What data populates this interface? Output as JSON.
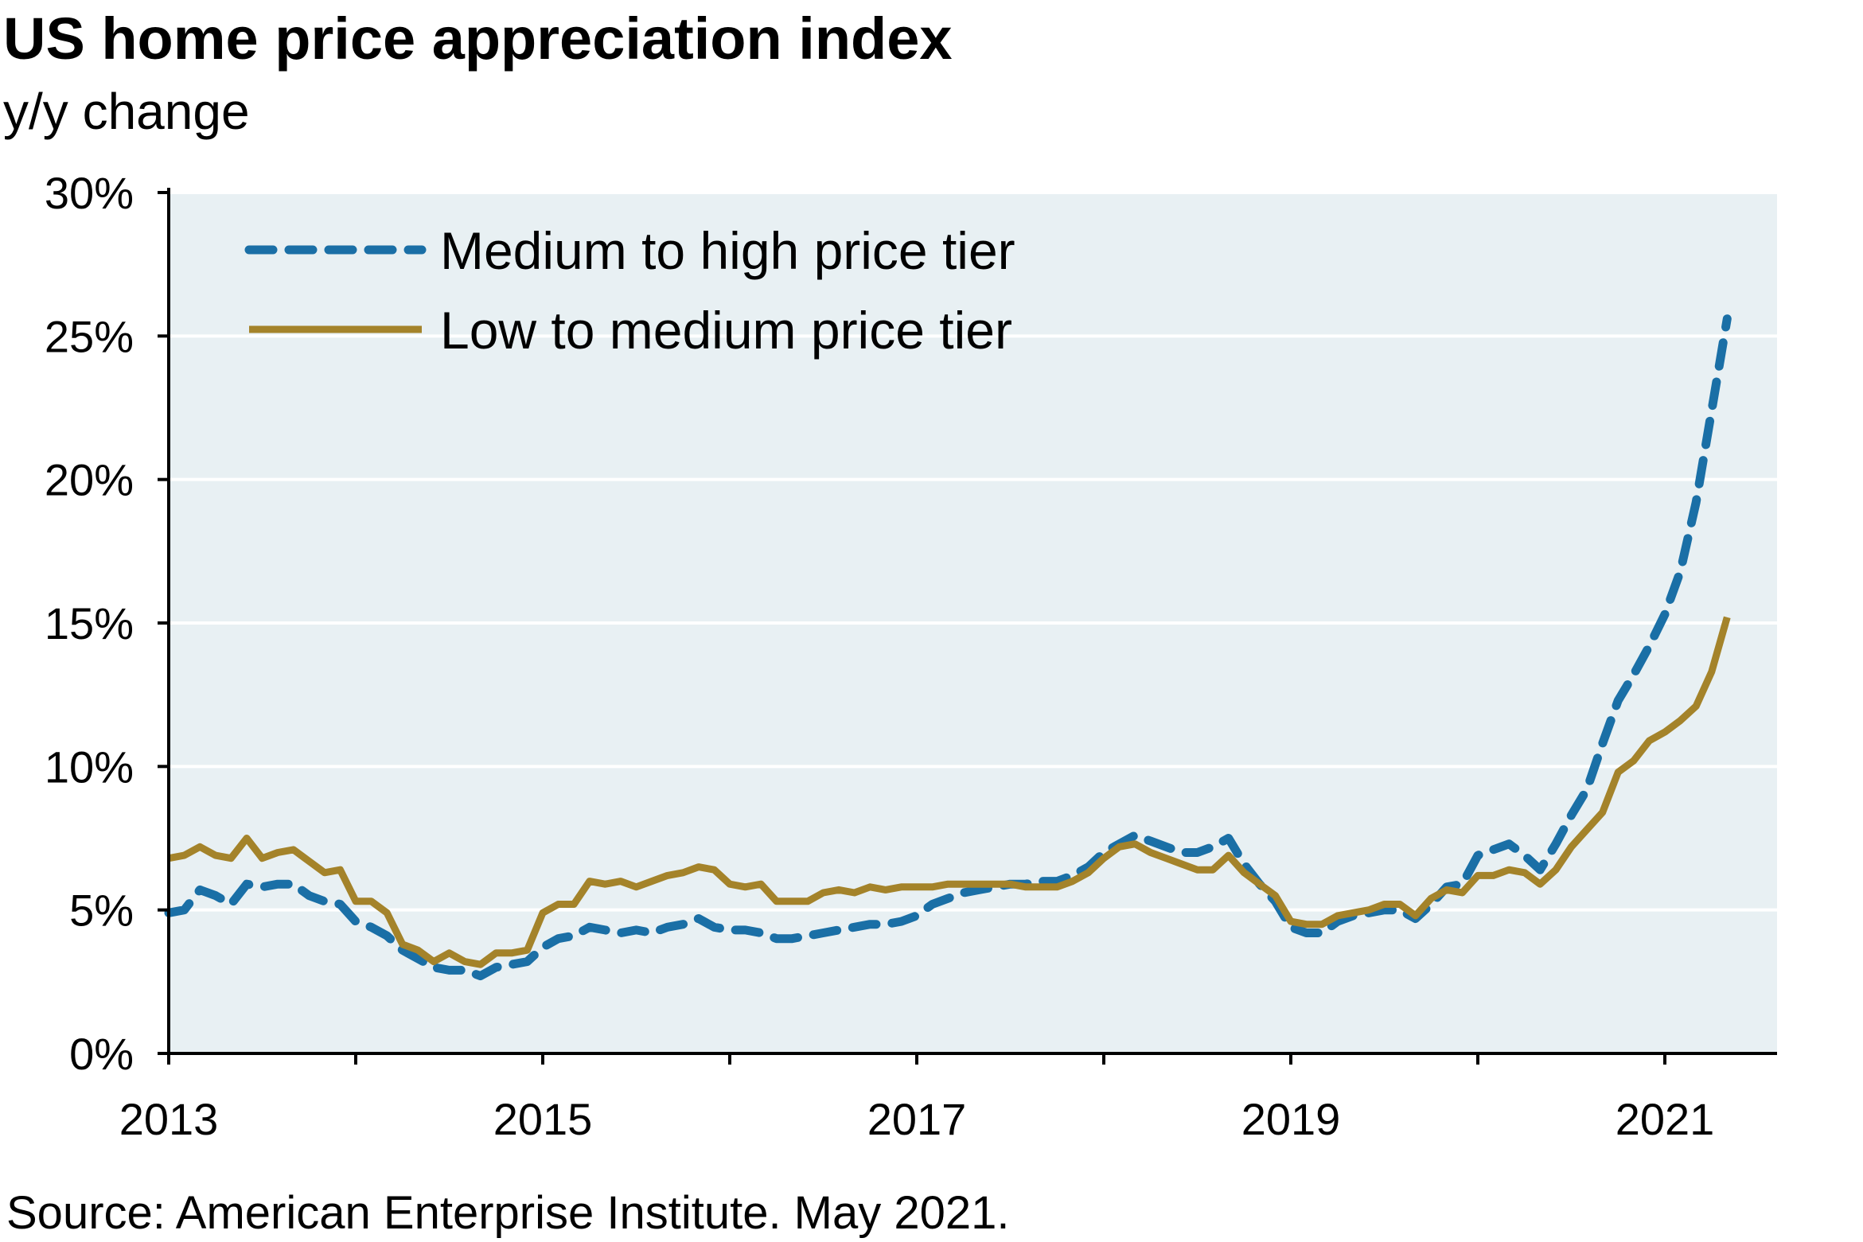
{
  "title": "US home price appreciation index",
  "subtitle": "y/y change",
  "source": "Source: American Enterprise Institute. May 2021.",
  "chart_data": {
    "type": "line",
    "xlim": [
      2013,
      2021.6
    ],
    "ylim": [
      0,
      30
    ],
    "x_ticks": [
      {
        "value": 2013,
        "label": "2013"
      },
      {
        "value": 2015,
        "label": "2015"
      },
      {
        "value": 2017,
        "label": "2017"
      },
      {
        "value": 2019,
        "label": "2019"
      },
      {
        "value": 2021,
        "label": "2021"
      }
    ],
    "y_ticks": [
      {
        "value": 0,
        "label": "0%"
      },
      {
        "value": 5,
        "label": "5%"
      },
      {
        "value": 10,
        "label": "10%"
      },
      {
        "value": 15,
        "label": "15%"
      },
      {
        "value": 20,
        "label": "20%"
      },
      {
        "value": 25,
        "label": "25%"
      },
      {
        "value": 30,
        "label": "30%"
      }
    ],
    "grid": "horizontal",
    "background_color": "#e8f0f3",
    "legend_position": "top-left",
    "series": [
      {
        "name": "Medium to high price tier",
        "style": "dashed",
        "color": "#1a6fa6",
        "points": [
          [
            2013.0,
            4.9
          ],
          [
            2013.083,
            5.0
          ],
          [
            2013.167,
            5.7
          ],
          [
            2013.25,
            5.5
          ],
          [
            2013.333,
            5.2
          ],
          [
            2013.417,
            5.9
          ],
          [
            2013.5,
            5.8
          ],
          [
            2013.583,
            5.9
          ],
          [
            2013.667,
            5.9
          ],
          [
            2013.75,
            5.5
          ],
          [
            2013.833,
            5.3
          ],
          [
            2013.917,
            5.2
          ],
          [
            2014.0,
            4.6
          ],
          [
            2014.083,
            4.4
          ],
          [
            2014.167,
            4.1
          ],
          [
            2014.25,
            3.6
          ],
          [
            2014.333,
            3.3
          ],
          [
            2014.417,
            3.0
          ],
          [
            2014.5,
            2.9
          ],
          [
            2014.583,
            2.9
          ],
          [
            2014.667,
            2.7
          ],
          [
            2014.75,
            3.0
          ],
          [
            2014.833,
            3.1
          ],
          [
            2014.917,
            3.2
          ],
          [
            2015.0,
            3.7
          ],
          [
            2015.083,
            4.0
          ],
          [
            2015.167,
            4.1
          ],
          [
            2015.25,
            4.4
          ],
          [
            2015.333,
            4.3
          ],
          [
            2015.417,
            4.2
          ],
          [
            2015.5,
            4.3
          ],
          [
            2015.583,
            4.2
          ],
          [
            2015.667,
            4.4
          ],
          [
            2015.75,
            4.5
          ],
          [
            2015.833,
            4.7
          ],
          [
            2015.917,
            4.4
          ],
          [
            2016.0,
            4.3
          ],
          [
            2016.083,
            4.3
          ],
          [
            2016.167,
            4.2
          ],
          [
            2016.25,
            4.0
          ],
          [
            2016.333,
            4.0
          ],
          [
            2016.417,
            4.1
          ],
          [
            2016.5,
            4.2
          ],
          [
            2016.583,
            4.3
          ],
          [
            2016.667,
            4.4
          ],
          [
            2016.75,
            4.5
          ],
          [
            2016.833,
            4.5
          ],
          [
            2016.917,
            4.6
          ],
          [
            2017.0,
            4.8
          ],
          [
            2017.083,
            5.2
          ],
          [
            2017.167,
            5.4
          ],
          [
            2017.25,
            5.6
          ],
          [
            2017.333,
            5.7
          ],
          [
            2017.417,
            5.8
          ],
          [
            2017.5,
            5.9
          ],
          [
            2017.583,
            5.9
          ],
          [
            2017.667,
            6.0
          ],
          [
            2017.75,
            6.0
          ],
          [
            2017.833,
            6.2
          ],
          [
            2017.917,
            6.5
          ],
          [
            2018.0,
            7.0
          ],
          [
            2018.083,
            7.3
          ],
          [
            2018.167,
            7.6
          ],
          [
            2018.25,
            7.4
          ],
          [
            2018.333,
            7.2
          ],
          [
            2018.417,
            7.0
          ],
          [
            2018.5,
            7.0
          ],
          [
            2018.583,
            7.2
          ],
          [
            2018.667,
            7.5
          ],
          [
            2018.75,
            6.6
          ],
          [
            2018.833,
            5.9
          ],
          [
            2018.917,
            5.3
          ],
          [
            2019.0,
            4.4
          ],
          [
            2019.083,
            4.2
          ],
          [
            2019.167,
            4.2
          ],
          [
            2019.25,
            4.6
          ],
          [
            2019.333,
            4.8
          ],
          [
            2019.417,
            4.9
          ],
          [
            2019.5,
            5.0
          ],
          [
            2019.583,
            5.0
          ],
          [
            2019.667,
            4.7
          ],
          [
            2019.75,
            5.2
          ],
          [
            2019.833,
            5.8
          ],
          [
            2019.917,
            5.9
          ],
          [
            2020.0,
            6.9
          ],
          [
            2020.083,
            7.1
          ],
          [
            2020.167,
            7.3
          ],
          [
            2020.25,
            6.9
          ],
          [
            2020.333,
            6.4
          ],
          [
            2020.417,
            7.3
          ],
          [
            2020.5,
            8.3
          ],
          [
            2020.583,
            9.2
          ],
          [
            2020.667,
            10.8
          ],
          [
            2020.75,
            12.3
          ],
          [
            2020.833,
            13.2
          ],
          [
            2020.917,
            14.2
          ],
          [
            2021.0,
            15.3
          ],
          [
            2021.083,
            16.8
          ],
          [
            2021.167,
            19.2
          ],
          [
            2021.25,
            22.4
          ],
          [
            2021.333,
            25.6
          ]
        ]
      },
      {
        "name": "Low to medium price tier",
        "style": "solid",
        "color": "#a4832a",
        "points": [
          [
            2013.0,
            6.8
          ],
          [
            2013.083,
            6.9
          ],
          [
            2013.167,
            7.2
          ],
          [
            2013.25,
            6.9
          ],
          [
            2013.333,
            6.8
          ],
          [
            2013.417,
            7.5
          ],
          [
            2013.5,
            6.8
          ],
          [
            2013.583,
            7.0
          ],
          [
            2013.667,
            7.1
          ],
          [
            2013.75,
            6.7
          ],
          [
            2013.833,
            6.3
          ],
          [
            2013.917,
            6.4
          ],
          [
            2014.0,
            5.3
          ],
          [
            2014.083,
            5.3
          ],
          [
            2014.167,
            4.9
          ],
          [
            2014.25,
            3.8
          ],
          [
            2014.333,
            3.6
          ],
          [
            2014.417,
            3.2
          ],
          [
            2014.5,
            3.5
          ],
          [
            2014.583,
            3.2
          ],
          [
            2014.667,
            3.1
          ],
          [
            2014.75,
            3.5
          ],
          [
            2014.833,
            3.5
          ],
          [
            2014.917,
            3.6
          ],
          [
            2015.0,
            4.9
          ],
          [
            2015.083,
            5.2
          ],
          [
            2015.167,
            5.2
          ],
          [
            2015.25,
            6.0
          ],
          [
            2015.333,
            5.9
          ],
          [
            2015.417,
            6.0
          ],
          [
            2015.5,
            5.8
          ],
          [
            2015.583,
            6.0
          ],
          [
            2015.667,
            6.2
          ],
          [
            2015.75,
            6.3
          ],
          [
            2015.833,
            6.5
          ],
          [
            2015.917,
            6.4
          ],
          [
            2016.0,
            5.9
          ],
          [
            2016.083,
            5.8
          ],
          [
            2016.167,
            5.9
          ],
          [
            2016.25,
            5.3
          ],
          [
            2016.333,
            5.3
          ],
          [
            2016.417,
            5.3
          ],
          [
            2016.5,
            5.6
          ],
          [
            2016.583,
            5.7
          ],
          [
            2016.667,
            5.6
          ],
          [
            2016.75,
            5.8
          ],
          [
            2016.833,
            5.7
          ],
          [
            2016.917,
            5.8
          ],
          [
            2017.0,
            5.8
          ],
          [
            2017.083,
            5.8
          ],
          [
            2017.167,
            5.9
          ],
          [
            2017.25,
            5.9
          ],
          [
            2017.333,
            5.9
          ],
          [
            2017.417,
            5.9
          ],
          [
            2017.5,
            5.9
          ],
          [
            2017.583,
            5.8
          ],
          [
            2017.667,
            5.8
          ],
          [
            2017.75,
            5.8
          ],
          [
            2017.833,
            6.0
          ],
          [
            2017.917,
            6.3
          ],
          [
            2018.0,
            6.8
          ],
          [
            2018.083,
            7.2
          ],
          [
            2018.167,
            7.3
          ],
          [
            2018.25,
            7.0
          ],
          [
            2018.333,
            6.8
          ],
          [
            2018.417,
            6.6
          ],
          [
            2018.5,
            6.4
          ],
          [
            2018.583,
            6.4
          ],
          [
            2018.667,
            6.9
          ],
          [
            2018.75,
            6.3
          ],
          [
            2018.833,
            5.9
          ],
          [
            2018.917,
            5.5
          ],
          [
            2019.0,
            4.6
          ],
          [
            2019.083,
            4.5
          ],
          [
            2019.167,
            4.5
          ],
          [
            2019.25,
            4.8
          ],
          [
            2019.333,
            4.9
          ],
          [
            2019.417,
            5.0
          ],
          [
            2019.5,
            5.2
          ],
          [
            2019.583,
            5.2
          ],
          [
            2019.667,
            4.8
          ],
          [
            2019.75,
            5.4
          ],
          [
            2019.833,
            5.7
          ],
          [
            2019.917,
            5.6
          ],
          [
            2020.0,
            6.2
          ],
          [
            2020.083,
            6.2
          ],
          [
            2020.167,
            6.4
          ],
          [
            2020.25,
            6.3
          ],
          [
            2020.333,
            5.9
          ],
          [
            2020.417,
            6.4
          ],
          [
            2020.5,
            7.2
          ],
          [
            2020.583,
            7.8
          ],
          [
            2020.667,
            8.4
          ],
          [
            2020.75,
            9.8
          ],
          [
            2020.833,
            10.2
          ],
          [
            2020.917,
            10.9
          ],
          [
            2021.0,
            11.2
          ],
          [
            2021.083,
            11.6
          ],
          [
            2021.167,
            12.1
          ],
          [
            2021.25,
            13.3
          ],
          [
            2021.333,
            15.2
          ]
        ]
      }
    ]
  }
}
